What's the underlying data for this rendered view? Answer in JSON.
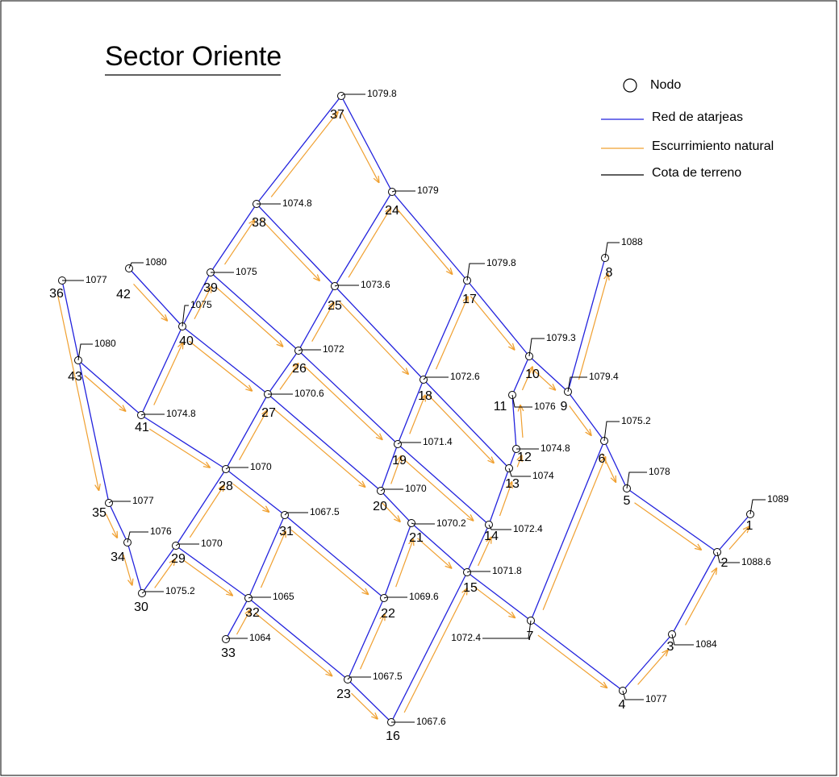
{
  "title": "Sector Oriente",
  "legend": {
    "node": "Nodo",
    "network": "Red de atarjeas",
    "runoff": "Escurrimiento natural",
    "elevation": "Cota de terreno"
  },
  "nodes": [
    {
      "label": "1",
      "elev": "1089"
    },
    {
      "label": "2",
      "elev": "1088.6"
    },
    {
      "label": "3",
      "elev": "1084"
    },
    {
      "label": "4",
      "elev": "1077"
    },
    {
      "label": "5",
      "elev": "1078"
    },
    {
      "label": "6",
      "elev": "1075.2"
    },
    {
      "label": "7",
      "elev": "1072.4"
    },
    {
      "label": "8",
      "elev": "1088"
    },
    {
      "label": "9",
      "elev": "1079.4"
    },
    {
      "label": "10",
      "elev": "1079.3"
    },
    {
      "label": "11",
      "elev": "1076"
    },
    {
      "label": "12",
      "elev": "1074.8"
    },
    {
      "label": "13",
      "elev": "1074"
    },
    {
      "label": "14",
      "elev": "1072.4"
    },
    {
      "label": "15",
      "elev": "1071.8"
    },
    {
      "label": "16",
      "elev": "1067.6"
    },
    {
      "label": "17",
      "elev": "1079.8"
    },
    {
      "label": "18",
      "elev": "1072.6"
    },
    {
      "label": "19",
      "elev": "1071.4"
    },
    {
      "label": "20",
      "elev": "1070"
    },
    {
      "label": "21",
      "elev": "1070.2"
    },
    {
      "label": "22",
      "elev": "1069.6"
    },
    {
      "label": "23",
      "elev": "1067.5"
    },
    {
      "label": "24",
      "elev": "1079"
    },
    {
      "label": "25",
      "elev": "1073.6"
    },
    {
      "label": "26",
      "elev": "1072"
    },
    {
      "label": "27",
      "elev": "1070.6"
    },
    {
      "label": "28",
      "elev": "1070"
    },
    {
      "label": "29",
      "elev": "1070"
    },
    {
      "label": "30",
      "elev": "1075.2"
    },
    {
      "label": "31",
      "elev": "1067.5"
    },
    {
      "label": "32",
      "elev": "1065"
    },
    {
      "label": "33",
      "elev": "1064"
    },
    {
      "label": "34",
      "elev": "1076"
    },
    {
      "label": "35",
      "elev": "1077"
    },
    {
      "label": "36",
      "elev": "1077"
    },
    {
      "label": "37",
      "elev": "1079.8"
    },
    {
      "label": "38",
      "elev": "1074.8"
    },
    {
      "label": "39",
      "elev": "1075"
    },
    {
      "label": "40",
      "elev": "1075"
    },
    {
      "label": "41",
      "elev": "1074.8"
    },
    {
      "label": "42",
      "elev": "1080"
    },
    {
      "label": "43",
      "elev": "1080"
    }
  ]
}
